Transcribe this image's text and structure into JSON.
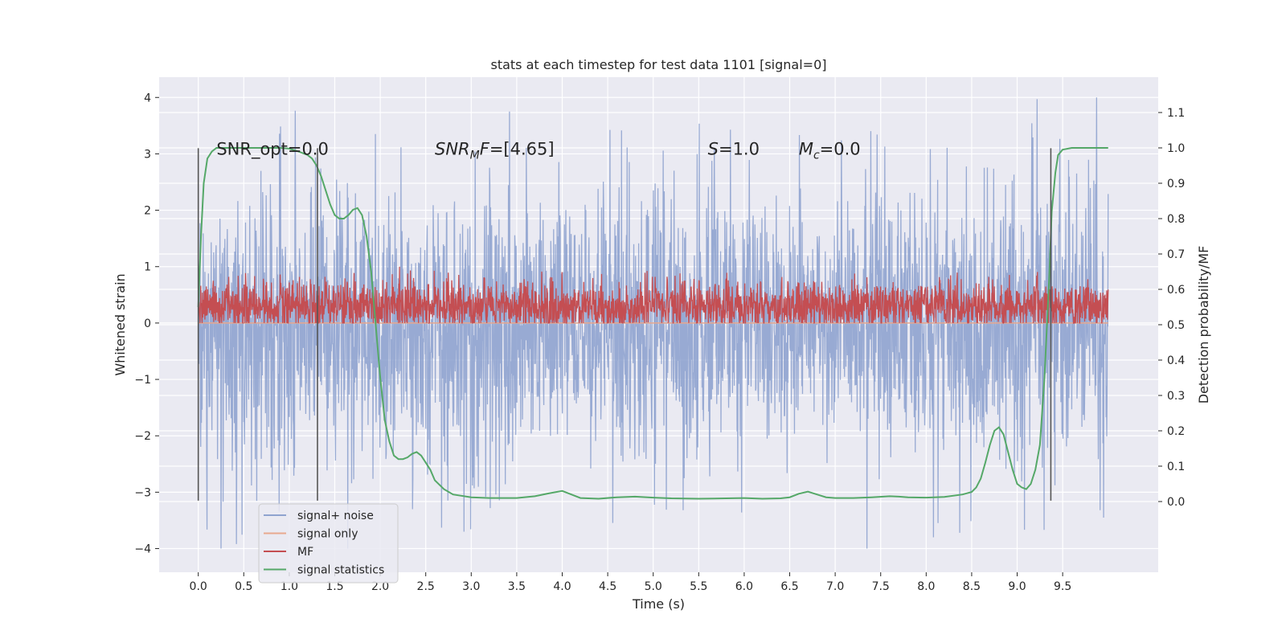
{
  "chart_data": {
    "type": "line",
    "title": "stats at each timestep for test data 1101 [signal=0]",
    "xlabel": "Time (s)",
    "ylabel": "Whitened strain",
    "y2label": "Detection probability/MF",
    "xlim": [
      -0.43,
      10.55
    ],
    "ylim": [
      -4.42,
      4.36
    ],
    "y2lim": [
      -0.2,
      1.2
    ],
    "x_ticks": [
      0.0,
      0.5,
      1.0,
      1.5,
      2.0,
      2.5,
      3.0,
      3.5,
      4.0,
      4.5,
      5.0,
      5.5,
      6.0,
      6.5,
      7.0,
      7.5,
      8.0,
      8.5,
      9.0,
      9.5
    ],
    "x_tick_labels": [
      "0.0",
      "0.5",
      "1.0",
      "1.5",
      "2.0",
      "2.5",
      "3.0",
      "3.5",
      "4.0",
      "4.5",
      "5.0",
      "5.5",
      "6.0",
      "6.5",
      "7.0",
      "7.5",
      "8.0",
      "8.5",
      "9.0",
      "9.5"
    ],
    "y_ticks": [
      -4,
      -3,
      -2,
      -1,
      0,
      1,
      2,
      3,
      4
    ],
    "y_tick_labels": [
      "−4",
      "−3",
      "−2",
      "−1",
      "0",
      "1",
      "2",
      "3",
      "4"
    ],
    "y2_ticks": [
      0.0,
      0.1,
      0.2,
      0.3,
      0.4,
      0.5,
      0.6,
      0.7,
      0.8,
      0.9,
      1.0,
      1.1
    ],
    "y2_tick_labels": [
      "0.0",
      "0.1",
      "0.2",
      "0.3",
      "0.4",
      "0.5",
      "0.6",
      "0.7",
      "0.8",
      "0.9",
      "1.0",
      "1.1"
    ],
    "grid": true,
    "legend_position": "lower-left",
    "annotations": [
      {
        "x": 0.2,
        "y": 3.1,
        "text_html": "SNR_opt=0.0"
      },
      {
        "x": 2.6,
        "y": 3.1,
        "text_html": "<tspan font-style=\"italic\">SNR</tspan><tspan font-style=\"italic\" font-size=\"14\" dy=\"5\">M</tspan><tspan font-style=\"italic\" dy=\"-5\">F</tspan>=[4.65]"
      },
      {
        "x": 5.6,
        "y": 3.1,
        "text_html": "<tspan font-style=\"italic\">S</tspan>=1.0"
      },
      {
        "x": 6.6,
        "y": 3.1,
        "text_html": "<tspan font-style=\"italic\">M</tspan><tspan font-style=\"italic\" font-size=\"14\" dy=\"5\">c</tspan><tspan dy=\"-5\">=0.0</tspan>"
      }
    ],
    "vertical_markers": {
      "x": [
        0.0,
        1.31,
        9.37
      ],
      "y_range": [
        -3.15,
        3.1
      ],
      "color": "#555555"
    },
    "series": [
      {
        "name": "signal+ noise",
        "color": "#8fa3cf",
        "kind": "noise",
        "x_range": [
          0.0,
          10.0
        ],
        "dense_band": [
          -1.35,
          1.25
        ],
        "spike_range": [
          -4.0,
          4.0
        ],
        "notable_peaks": [
          {
            "x": 0.25,
            "y": -4.0
          },
          {
            "x": 3.42,
            "y": 3.75
          },
          {
            "x": 2.92,
            "y": -3.7
          },
          {
            "x": 9.22,
            "y": 3.97
          },
          {
            "x": 8.08,
            "y": -3.8
          },
          {
            "x": 9.95,
            "y": -3.45
          }
        ]
      },
      {
        "name": "signal only",
        "color": "#e8a88e",
        "kind": "flat",
        "x_range": [
          0.0,
          10.0
        ],
        "value": 0.0
      },
      {
        "name": "MF",
        "color": "#c44e52",
        "kind": "noise",
        "x_range": [
          0.0,
          10.0
        ],
        "dense_band": [
          0.05,
          0.55
        ],
        "spike_range": [
          0.0,
          1.0
        ]
      },
      {
        "name": "signal statistics",
        "color": "#55a868",
        "kind": "line",
        "axis": "right",
        "x": [
          0.0,
          0.03,
          0.06,
          0.1,
          0.15,
          0.2,
          0.3,
          0.5,
          0.7,
          0.9,
          1.0,
          1.1,
          1.2,
          1.25,
          1.3,
          1.35,
          1.4,
          1.45,
          1.5,
          1.55,
          1.6,
          1.65,
          1.7,
          1.75,
          1.8,
          1.85,
          1.9,
          1.95,
          2.0,
          2.05,
          2.1,
          2.15,
          2.2,
          2.25,
          2.3,
          2.35,
          2.4,
          2.45,
          2.5,
          2.55,
          2.6,
          2.7,
          2.8,
          3.0,
          3.2,
          3.5,
          3.7,
          3.85,
          4.0,
          4.1,
          4.2,
          4.4,
          4.6,
          4.8,
          5.0,
          5.2,
          5.5,
          5.8,
          6.0,
          6.2,
          6.4,
          6.5,
          6.6,
          6.7,
          6.8,
          6.9,
          7.0,
          7.2,
          7.4,
          7.6,
          7.7,
          7.8,
          8.0,
          8.2,
          8.4,
          8.5,
          8.55,
          8.6,
          8.65,
          8.7,
          8.75,
          8.8,
          8.85,
          8.9,
          8.95,
          9.0,
          9.05,
          9.1,
          9.15,
          9.2,
          9.25,
          9.3,
          9.35,
          9.38,
          9.42,
          9.45,
          9.5,
          9.6,
          9.8,
          10.0
        ],
        "y": [
          0.55,
          0.75,
          0.9,
          0.97,
          0.99,
          1.0,
          1.0,
          1.0,
          1.0,
          1.0,
          0.998,
          0.99,
          0.98,
          0.97,
          0.95,
          0.92,
          0.88,
          0.84,
          0.81,
          0.8,
          0.8,
          0.81,
          0.825,
          0.83,
          0.81,
          0.75,
          0.65,
          0.5,
          0.35,
          0.23,
          0.17,
          0.13,
          0.12,
          0.12,
          0.125,
          0.135,
          0.14,
          0.13,
          0.11,
          0.09,
          0.06,
          0.035,
          0.02,
          0.012,
          0.01,
          0.01,
          0.015,
          0.023,
          0.03,
          0.02,
          0.01,
          0.008,
          0.012,
          0.014,
          0.011,
          0.009,
          0.008,
          0.009,
          0.01,
          0.008,
          0.009,
          0.012,
          0.022,
          0.028,
          0.02,
          0.012,
          0.01,
          0.01,
          0.012,
          0.015,
          0.014,
          0.012,
          0.011,
          0.013,
          0.02,
          0.027,
          0.04,
          0.065,
          0.11,
          0.16,
          0.2,
          0.21,
          0.19,
          0.14,
          0.09,
          0.05,
          0.04,
          0.035,
          0.05,
          0.09,
          0.16,
          0.35,
          0.62,
          0.82,
          0.93,
          0.98,
          0.995,
          1.0,
          1.0,
          1.0
        ]
      }
    ]
  }
}
